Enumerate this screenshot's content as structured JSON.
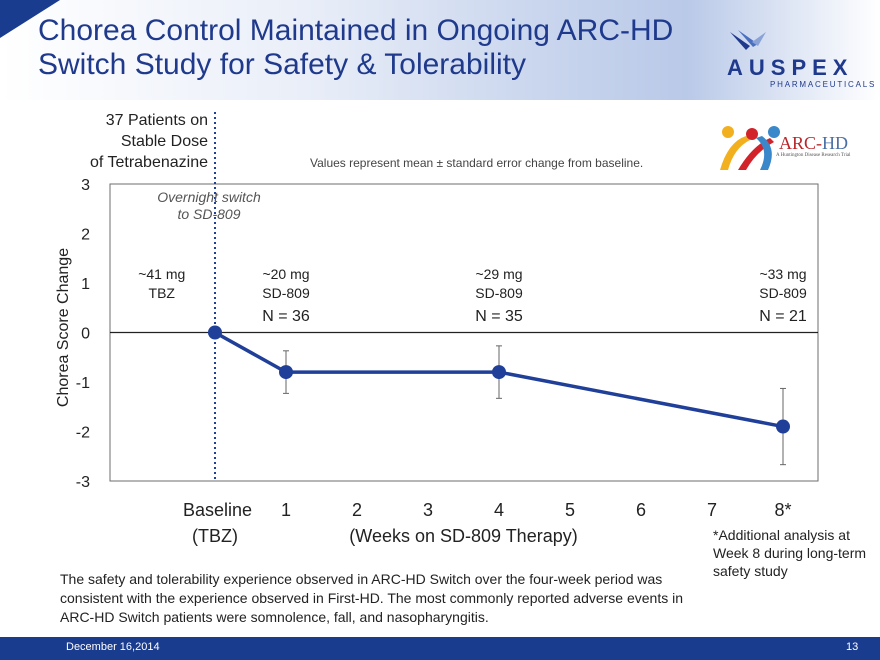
{
  "slide": {
    "title": "Chorea Control Maintained in Ongoing ARC-HD\nSwitch Study for Safety & Tolerability",
    "company_logo": {
      "name": "AUSPEX",
      "sub": "PHARMACEUTICALS",
      "icon": "auspex-bird-icon"
    },
    "study_logo": {
      "title_a": "ARC-",
      "title_b": "HD",
      "sub": "A Huntington Disease Research Trial"
    },
    "stable_label": [
      "37 Patients on",
      "Stable Dose",
      "of Tetrabenazine"
    ],
    "note": "Values represent mean ± standard error change from baseline.",
    "footnote": "*Additional analysis at Week 8 during long-term safety study",
    "bottom_text": "The safety and tolerability experience observed in ARC-HD Switch over the four-week period was consistent with the experience observed in First-HD. The most commonly reported adverse events in ARC-HD Switch patients were somnolence, fall, and nasopharyngitis.",
    "footer": {
      "date": "December 16,2014",
      "page": "13"
    },
    "colors": {
      "brand": "#1a3c8e",
      "title": "#1f3a8c",
      "series": "#1f3f99",
      "switch_line": "#1f3f99"
    }
  },
  "chart_data": {
    "type": "line",
    "title": "",
    "ylabel": "Chorea Score Change",
    "xlabel": "(Weeks on SD-809 Therapy)",
    "ylim": [
      -3,
      3
    ],
    "yticks": [
      3,
      2,
      1,
      0,
      -1,
      -2,
      -3
    ],
    "xlim": [
      -1,
      9
    ],
    "x_ticks": [
      {
        "x": 0,
        "label": "Baseline",
        "sublabel": "(TBZ)"
      },
      {
        "x": 1,
        "label": "1"
      },
      {
        "x": 2,
        "label": "2"
      },
      {
        "x": 3,
        "label": "3"
      },
      {
        "x": 4,
        "label": "4"
      },
      {
        "x": 5,
        "label": "5"
      },
      {
        "x": 6,
        "label": "6"
      },
      {
        "x": 7,
        "label": "7"
      },
      {
        "x": 8,
        "label": "8*"
      }
    ],
    "switch_x": 0,
    "switch_label": [
      "Overnight switch",
      "to SD-809"
    ],
    "series": [
      {
        "name": "Chorea score change",
        "x": [
          0,
          1,
          4,
          8
        ],
        "values": [
          0,
          -0.8,
          -0.8,
          -1.9
        ],
        "err": [
          0,
          0.43,
          0.53,
          0.77
        ]
      }
    ],
    "dose_labels": [
      {
        "x": -0.75,
        "dose": "~41 mg",
        "drug": "TBZ",
        "n": ""
      },
      {
        "x": 1,
        "dose": "~20 mg",
        "drug": "SD-809",
        "n": "N = 36"
      },
      {
        "x": 4,
        "dose": "~29 mg",
        "drug": "SD-809",
        "n": "N = 35"
      },
      {
        "x": 8,
        "dose": "~33 mg",
        "drug": "SD-809",
        "n": "N = 21"
      }
    ]
  }
}
